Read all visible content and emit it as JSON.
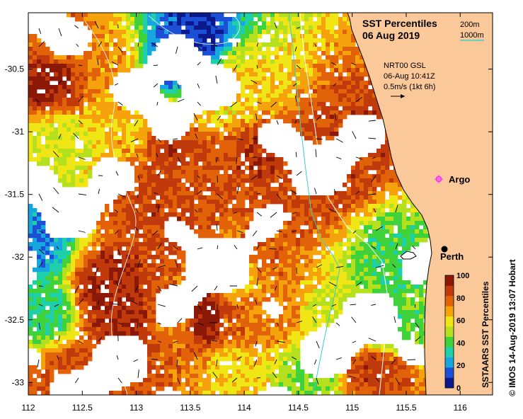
{
  "title": {
    "line1": "SST Percentiles",
    "line2": "06 Aug 2019"
  },
  "contour_legend": {
    "shallow": "200m",
    "deep": "1000m",
    "deep_color": "#35d2c8"
  },
  "current_info": {
    "line1": "NRT00 GSL",
    "line2": "06-Aug 10:41Z",
    "line3": "0.5m/s (1kt 6h)"
  },
  "places": [
    {
      "name": "Argo",
      "lon": 115.8,
      "lat": -31.45,
      "marker": "magenta-circle",
      "color": "#ff33ff"
    },
    {
      "name": "Perth",
      "lon": 115.86,
      "lat": -31.95,
      "marker": "black-dot",
      "color": "#000000"
    }
  ],
  "axes": {
    "x_ticks": [
      "112",
      "112.5",
      "113",
      "113.5",
      "114",
      "114.5",
      "115",
      "115.5",
      "116"
    ],
    "y_ticks": [
      "-30.5",
      "-31",
      "-31.5",
      "-32",
      "-32.5",
      "-33"
    ],
    "x_range": [
      112,
      116.3
    ],
    "y_range": [
      -33.1,
      -30.05
    ]
  },
  "colorbar": {
    "title": "SSTAARS SST Percentiles",
    "ticks": [
      "0",
      "20",
      "40",
      "60",
      "80",
      "100"
    ],
    "colors": [
      "#0a1a8c",
      "#1a4fd6",
      "#17a6e0",
      "#1fcfa8",
      "#3fd23a",
      "#b4e01e",
      "#f0e616",
      "#f5a20c",
      "#e2620a",
      "#c03a0c",
      "#8c1808"
    ]
  },
  "credit": "© IMOS 14-Aug-2019 13:07 Hobart",
  "colors": {
    "land": "#fbc89a",
    "missing": "#ffffff",
    "coast": "#000000"
  },
  "chart_data": {
    "type": "heatmap",
    "title": "SST Percentiles 06 Aug 2019",
    "xlabel": "",
    "ylabel": "",
    "xlim": [
      112,
      116.3
    ],
    "ylim": [
      -33.1,
      -30.05
    ],
    "colorbar_range": [
      0,
      100
    ],
    "regions": [
      {
        "lon": 113.55,
        "lat": -30.25,
        "percentile": 8
      },
      {
        "lon": 113.35,
        "lat": -30.45,
        "percentile": 15
      },
      {
        "lon": 112.25,
        "lat": -30.35,
        "percentile": 75
      },
      {
        "lon": 112.75,
        "lat": -30.45,
        "percentile": 70
      },
      {
        "lon": 112.2,
        "lat": -30.55,
        "percentile": 95
      },
      {
        "lon": 113.8,
        "lat": -30.7,
        "percentile": 58
      },
      {
        "lon": 114.0,
        "lat": -30.6,
        "percentile": 62
      },
      {
        "lon": 113.0,
        "lat": -31.0,
        "percentile": 65
      },
      {
        "lon": 112.3,
        "lat": -31.1,
        "percentile": 55
      },
      {
        "lon": 113.25,
        "lat": -31.05,
        "percentile": 88
      },
      {
        "lon": 113.2,
        "lat": -31.6,
        "percentile": 85
      },
      {
        "lon": 113.7,
        "lat": -31.3,
        "percentile": 80
      },
      {
        "lon": 114.1,
        "lat": -31.2,
        "percentile": 88
      },
      {
        "lon": 114.4,
        "lat": -31.5,
        "percentile": 82
      },
      {
        "lon": 114.75,
        "lat": -31.35,
        "percentile": 85
      },
      {
        "lon": 115.0,
        "lat": -31.05,
        "percentile": 85
      },
      {
        "lon": 114.2,
        "lat": -31.95,
        "percentile": 78
      },
      {
        "lon": 113.9,
        "lat": -32.15,
        "percentile": 62
      },
      {
        "lon": 112.7,
        "lat": -32.25,
        "percentile": 92
      },
      {
        "lon": 112.9,
        "lat": -32.5,
        "percentile": 90
      },
      {
        "lon": 113.4,
        "lat": -32.5,
        "percentile": 72
      },
      {
        "lon": 113.65,
        "lat": -32.5,
        "percentile": 98
      },
      {
        "lon": 113.9,
        "lat": -32.55,
        "percentile": 78
      },
      {
        "lon": 114.3,
        "lat": -32.45,
        "percentile": 72
      },
      {
        "lon": 114.8,
        "lat": -32.45,
        "percentile": 55
      },
      {
        "lon": 115.35,
        "lat": -32.0,
        "percentile": 40
      },
      {
        "lon": 115.3,
        "lat": -32.55,
        "percentile": 40
      },
      {
        "lon": 114.6,
        "lat": -32.95,
        "percentile": 45
      },
      {
        "lon": 113.9,
        "lat": -32.85,
        "percentile": 62
      },
      {
        "lon": 112.4,
        "lat": -32.95,
        "percentile": 82
      },
      {
        "lon": 112.15,
        "lat": -32.4,
        "percentile": 35
      },
      {
        "lon": 112.05,
        "lat": -31.9,
        "percentile": 20
      },
      {
        "lon": 115.2,
        "lat": -32.9,
        "percentile": 85
      }
    ]
  }
}
